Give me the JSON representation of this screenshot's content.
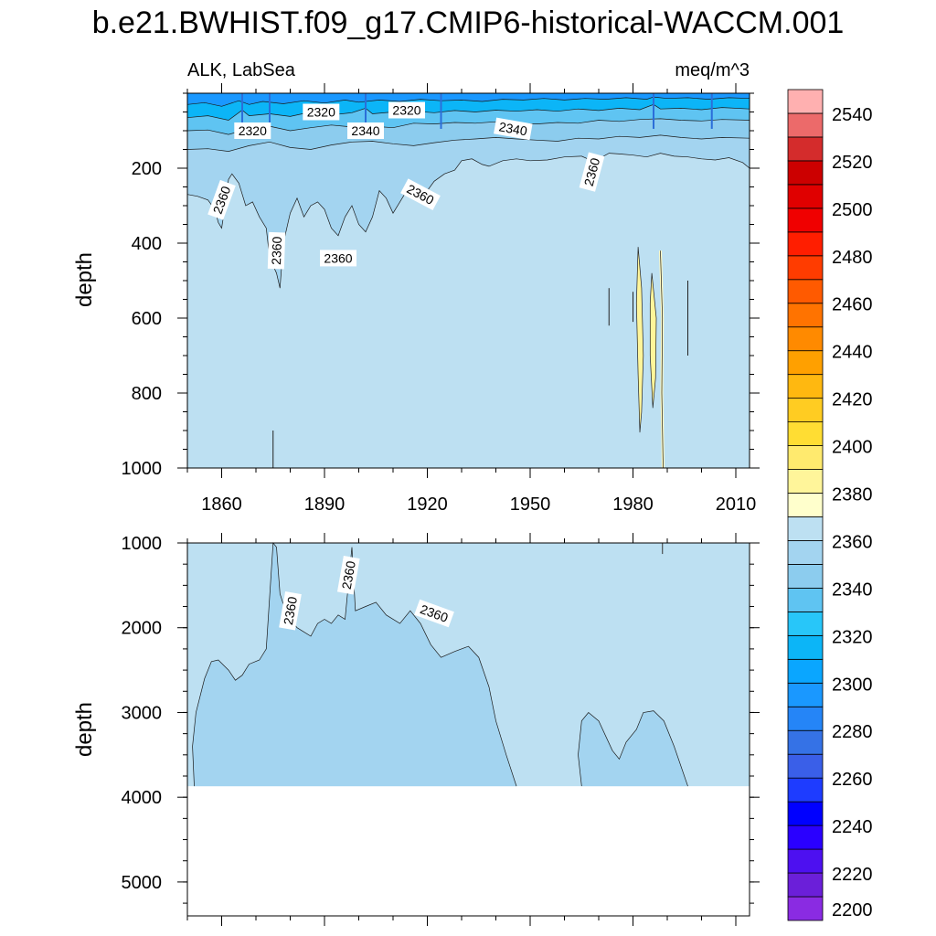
{
  "chart_data": {
    "type": "heatmap",
    "title": "b.e21.BWHIST.f09_g17.CMIP6-historical-WACCM.001",
    "left_subtitle": "ALK, LabSea",
    "right_subtitle": "meq/m^3",
    "xlim": [
      1850,
      2014
    ],
    "x_ticks": [
      1860,
      1890,
      1920,
      1950,
      1980,
      2010
    ],
    "x_tick_labels": [
      "1860",
      "1890",
      "1920",
      "1950",
      "1980",
      "2010"
    ],
    "panels": [
      {
        "name": "upper",
        "ylabel": "depth",
        "ylim": [
          0,
          1000
        ],
        "y_ticks": [
          200,
          400,
          600,
          800,
          1000
        ],
        "y_tick_labels": [
          "200",
          "400",
          "600",
          "800",
          "1000"
        ],
        "background_level": 2360,
        "surface_bands": [
          {
            "level": 2290,
            "top": 0,
            "bottom": 30
          },
          {
            "level": 2310,
            "top": 30,
            "bottom": 60
          },
          {
            "level": 2330,
            "top": 60,
            "bottom": 100
          },
          {
            "level": 2345,
            "top": 100,
            "bottom": 160
          },
          {
            "level": 2355,
            "top": 160,
            "bottom": 260
          }
        ],
        "contour_labels": [
          {
            "text": "2320",
            "year": 1869,
            "depth": 100
          },
          {
            "text": "2320",
            "year": 1889,
            "depth": 50
          },
          {
            "text": "2340",
            "year": 1902,
            "depth": 100
          },
          {
            "text": "2320",
            "year": 1914,
            "depth": 45
          },
          {
            "text": "2340",
            "year": 1945,
            "depth": 95
          },
          {
            "text": "2360",
            "year": 1860,
            "depth": 285
          },
          {
            "text": "2360",
            "year": 1876,
            "depth": 420
          },
          {
            "text": "2360",
            "year": 1894,
            "depth": 440
          },
          {
            "text": "2360",
            "year": 1918,
            "depth": 270
          },
          {
            "text": "2360",
            "year": 1968,
            "depth": 210
          }
        ],
        "anomalies": [
          {
            "level": 2380,
            "year_min": 1982,
            "year_max": 1987,
            "depth_min": 450,
            "depth_max": 900
          }
        ]
      },
      {
        "name": "lower",
        "ylabel": "depth",
        "ylim": [
          1000,
          5400
        ],
        "y_ticks": [
          1000,
          2000,
          3000,
          4000,
          5000
        ],
        "y_tick_labels": [
          "1000",
          "2000",
          "3000",
          "4000",
          "5000"
        ],
        "background_level": 2360,
        "bottom_depth": 3870,
        "contour_labels": [
          {
            "text": "2360",
            "year": 1880,
            "depth": 1800
          },
          {
            "text": "2360",
            "year": 1897,
            "depth": 1380
          },
          {
            "text": "2360",
            "year": 1922,
            "depth": 1830
          }
        ],
        "regions": [
          {
            "level": 2355,
            "desc": "deep water mass 1860-1940"
          },
          {
            "level": 2355,
            "desc": "deep water mass 1965-1990"
          }
        ]
      }
    ],
    "colorbar": {
      "levels": [
        2200,
        2210,
        2220,
        2230,
        2240,
        2250,
        2260,
        2270,
        2280,
        2290,
        2300,
        2310,
        2320,
        2330,
        2340,
        2350,
        2360,
        2370,
        2380,
        2390,
        2400,
        2410,
        2420,
        2430,
        2440,
        2450,
        2460,
        2470,
        2480,
        2490,
        2500,
        2510,
        2520,
        2530,
        2540,
        2550
      ],
      "tick_labels": [
        "2200",
        "2220",
        "2240",
        "2260",
        "2280",
        "2300",
        "2320",
        "2340",
        "2360",
        "2380",
        "2400",
        "2420",
        "2440",
        "2460",
        "2480",
        "2500",
        "2520",
        "2540"
      ],
      "colors": [
        "#8a2be2",
        "#6b1fd9",
        "#4d10f0",
        "#2a00ff",
        "#0000ff",
        "#1e3cff",
        "#3a5fe8",
        "#3572e6",
        "#2585f7",
        "#1a98ff",
        "#0aa6ff",
        "#0cb5f7",
        "#28c6f9",
        "#5fc4f2",
        "#8cccee",
        "#a3d4f0",
        "#bde0f2",
        "#ffffcc",
        "#fff59a",
        "#ffea6e",
        "#ffdd33",
        "#ffcc22",
        "#ffb810",
        "#ffa000",
        "#ff8a00",
        "#ff7300",
        "#ff5a00",
        "#ff3c00",
        "#ff1e00",
        "#f00000",
        "#e00000",
        "#cc0000",
        "#d42c2c",
        "#ec6a6a",
        "#ffb0b0"
      ]
    }
  }
}
